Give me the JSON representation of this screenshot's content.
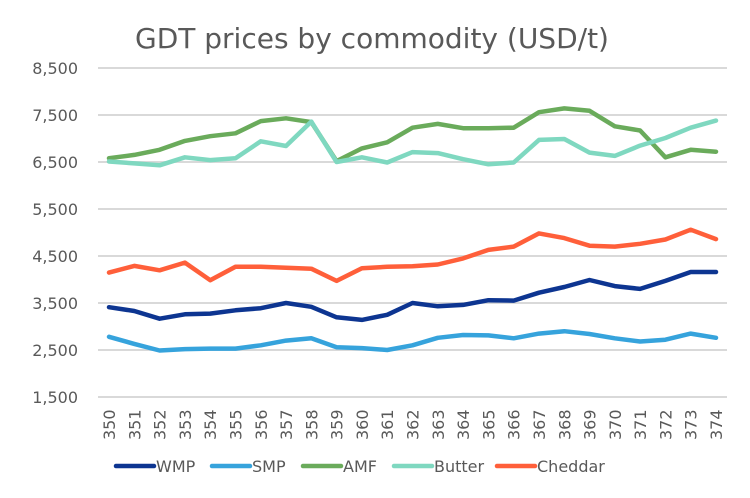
{
  "chart_data": {
    "type": "line",
    "title": "GDT prices by commodity (USD/t)",
    "xlabel": "",
    "ylabel": "",
    "ylim": [
      1500,
      8500
    ],
    "yticks": [
      "8,500",
      "7,500",
      "6,500",
      "5,500",
      "4,500",
      "3,500",
      "2,500",
      "1,500"
    ],
    "ytick_values": [
      8500,
      7500,
      6500,
      5500,
      4500,
      3500,
      2500,
      1500
    ],
    "grid": true,
    "legend_position": "bottom",
    "x": [
      "350",
      "351",
      "352",
      "353",
      "354",
      "355",
      "356",
      "357",
      "358",
      "359",
      "360",
      "361",
      "362",
      "363",
      "364",
      "365",
      "366",
      "367",
      "368",
      "369",
      "370",
      "371",
      "372",
      "373",
      "374"
    ],
    "series": [
      {
        "name": "WMP",
        "color": "#0d3591",
        "values": [
          3410,
          3330,
          3165,
          3260,
          3275,
          3345,
          3390,
          3500,
          3420,
          3195,
          3140,
          3250,
          3500,
          3430,
          3460,
          3560,
          3550,
          3720,
          3840,
          3990,
          3860,
          3800,
          3970,
          4160,
          4160
        ]
      },
      {
        "name": "SMP",
        "color": "#36a3dc",
        "values": [
          2780,
          2630,
          2490,
          2520,
          2530,
          2530,
          2600,
          2700,
          2750,
          2560,
          2540,
          2500,
          2600,
          2760,
          2820,
          2810,
          2750,
          2850,
          2900,
          2840,
          2750,
          2680,
          2720,
          2850,
          2760
        ]
      },
      {
        "name": "AMF",
        "color": "#6aab5b",
        "values": [
          6580,
          6650,
          6760,
          6950,
          7050,
          7110,
          7370,
          7430,
          7350,
          6520,
          6790,
          6920,
          7230,
          7310,
          7220,
          7220,
          7230,
          7560,
          7640,
          7590,
          7260,
          7170,
          6600,
          6760,
          6720
        ]
      },
      {
        "name": "Butter",
        "color": "#7fd8c0",
        "values": [
          6510,
          6470,
          6430,
          6600,
          6540,
          6580,
          6940,
          6840,
          7360,
          6500,
          6600,
          6490,
          6710,
          6690,
          6560,
          6450,
          6490,
          6970,
          6990,
          6700,
          6630,
          6850,
          7010,
          7230,
          7380
        ]
      },
      {
        "name": "Cheddar",
        "color": "#ff5f3a",
        "values": [
          4147,
          4290,
          4195,
          4360,
          3985,
          4270,
          4270,
          4250,
          4230,
          3970,
          4240,
          4270,
          4280,
          4320,
          4450,
          4630,
          4700,
          4980,
          4880,
          4720,
          4700,
          4760,
          4850,
          5060,
          4860
        ]
      }
    ]
  }
}
